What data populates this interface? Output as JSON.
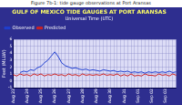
{
  "chart_data": {
    "type": "line",
    "caption": "Figure 7b-1: tide gauge observations at Port Aransas",
    "title": "GULF OF MEXICO TIDE GAUGES AT PORT ARANSAS",
    "subtitle": "Universal Time (UTC)",
    "y_label": "Feet (MLLW)",
    "categories": [
      "Aug 23",
      null,
      null,
      null,
      "Aug 24",
      null,
      null,
      null,
      "Aug 25",
      null,
      null,
      null,
      "Aug 26",
      null,
      null,
      null,
      "Aug 27",
      null,
      null,
      null,
      "Aug 28",
      null,
      null,
      null,
      "Aug 29",
      null,
      null,
      null,
      "Aug 30",
      null,
      null,
      null,
      "Aug 31",
      null,
      null,
      null,
      "Sep 01",
      null,
      null,
      null,
      "Sep 02",
      null,
      null,
      null,
      "Sep 03",
      null,
      null,
      null
    ],
    "series": [
      {
        "name": "Observed",
        "color": "#1f3fd0",
        "values": [
          null,
          null,
          1.2,
          1.4,
          1.3,
          1.6,
          1.5,
          1.9,
          2.1,
          2.6,
          3.0,
          3.6,
          4.2,
          3.5,
          2.6,
          2.2,
          2.0,
          1.8,
          1.9,
          1.7,
          1.6,
          1.7,
          1.5,
          1.6,
          1.5,
          1.4,
          1.6,
          1.5,
          1.4,
          1.5,
          1.3,
          1.4,
          1.3,
          1.4,
          1.2,
          1.3,
          1.2,
          1.3,
          1.1,
          1.3,
          1.2,
          1.3,
          1.2,
          1.3,
          1.2,
          1.4,
          1.2,
          1.3
        ]
      },
      {
        "name": "Predicted",
        "color": "#cc2222",
        "values": [
          0.9,
          0.7,
          1.0,
          0.8,
          0.9,
          0.7,
          1.0,
          0.8,
          1.0,
          0.7,
          0.9,
          0.8,
          1.0,
          0.8,
          0.9,
          0.7,
          1.0,
          0.8,
          0.9,
          0.7,
          1.0,
          0.8,
          0.9,
          0.8,
          0.9,
          0.8,
          1.0,
          0.8,
          0.9,
          0.8,
          1.0,
          0.7,
          0.9,
          0.7,
          1.0,
          0.7,
          0.8,
          0.7,
          1.0,
          0.8,
          0.8,
          0.7,
          1.0,
          0.8,
          0.9,
          0.7,
          1.0,
          0.8
        ]
      }
    ],
    "ylim": [
      -1,
      6
    ],
    "yticks": [
      -1,
      0,
      1,
      2,
      3,
      4,
      5,
      6
    ],
    "grid": true,
    "legend": "top-left"
  }
}
